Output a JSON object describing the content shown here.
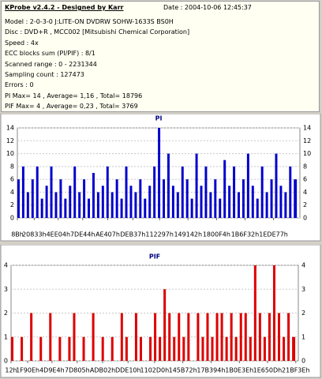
{
  "info": {
    "title": "KProbe v2.4.2 - Designed by Karr",
    "date": "Date : 2004-10-06 12:45:37",
    "lines": [
      "Model : 2-0-3-0 J:LITE-ON DVDRW SOHW-1633S BS0H",
      "Disc : DVD+R , MCC002 [Mitsubishi Chemical Corporation]",
      "Speed : 4x",
      "ECC blocks sum (PI/PIF) : 8/1",
      "Scanned range : 0 - 2231344",
      "Sampling count : 127473",
      "Errors : 0",
      "PI Max= 14 , Average= 1,16 , Total= 18796",
      "PIF Max= 4 , Average= 0,23 , Total= 3769"
    ]
  },
  "chart_data": [
    {
      "type": "bar",
      "title": "PI",
      "color": "#0000cc",
      "grid": true,
      "xlim": [
        0,
        2231344
      ],
      "ylim": [
        0,
        14
      ],
      "yticks": [
        0,
        2,
        4,
        6,
        8,
        10,
        12,
        14
      ],
      "xticks": [
        {
          "value": 139,
          "label": "8Bh"
        },
        {
          "value": 133171,
          "label": "20833h"
        },
        {
          "value": 323076,
          "label": "4EE04h"
        },
        {
          "value": 515652,
          "label": "7DE44h"
        },
        {
          "value": 713735,
          "label": "AE407h"
        },
        {
          "value": 912183,
          "label": "DEB37h"
        },
        {
          "value": 1122967,
          "label": "112297h"
        },
        {
          "value": 1347906,
          "label": "149142h"
        },
        {
          "value": 1573108,
          "label": "1800F4h"
        },
        {
          "value": 1797938,
          "label": "1B6F32h"
        },
        {
          "value": 2023031,
          "label": "1EDE77h"
        }
      ],
      "x": [
        0,
        37000,
        74000,
        111000,
        148000,
        185000,
        222000,
        259000,
        296000,
        333000,
        370000,
        407000,
        444000,
        481000,
        518000,
        555000,
        592000,
        629000,
        666000,
        703000,
        740000,
        777000,
        814000,
        851000,
        888000,
        925000,
        962000,
        999000,
        1036000,
        1073000,
        1110000,
        1147000,
        1184000,
        1221000,
        1258000,
        1295000,
        1332000,
        1369000,
        1406000,
        1443000,
        1480000,
        1517000,
        1554000,
        1591000,
        1628000,
        1665000,
        1702000,
        1739000,
        1776000,
        1813000,
        1850000,
        1887000,
        1924000,
        1961000,
        1998000,
        2035000,
        2072000,
        2109000,
        2146000,
        2183000
      ],
      "values": [
        6,
        8,
        4,
        6,
        8,
        3,
        5,
        8,
        4,
        6,
        3,
        5,
        8,
        4,
        6,
        3,
        7,
        4,
        5,
        8,
        4,
        6,
        3,
        8,
        5,
        4,
        6,
        3,
        5,
        8,
        14,
        6,
        10,
        5,
        4,
        8,
        6,
        3,
        10,
        5,
        8,
        4,
        6,
        3,
        9,
        5,
        8,
        4,
        6,
        10,
        5,
        3,
        8,
        4,
        6,
        10,
        5,
        4,
        8,
        6
      ]
    },
    {
      "type": "bar",
      "title": "PIF",
      "color": "#dd0000",
      "grid": true,
      "xlim": [
        0,
        2231344
      ],
      "ylim": [
        0,
        4
      ],
      "yticks": [
        0,
        1,
        2,
        3,
        4
      ],
      "xticks": [
        {
          "value": 18,
          "label": "12h"
        },
        {
          "value": 129294,
          "label": "1F90Eh"
        },
        {
          "value": 317924,
          "label": "4D9E4h"
        },
        {
          "value": 514053,
          "label": "7D805h"
        },
        {
          "value": 711426,
          "label": "ADB02h"
        },
        {
          "value": 908816,
          "label": "DDE10h"
        },
        {
          "value": 1114832,
          "label": "1102D0h"
        },
        {
          "value": 1334130,
          "label": "145B72h"
        },
        {
          "value": 1553300,
          "label": "17B394h"
        },
        {
          "value": 1773118,
          "label": "1B0E3Eh"
        },
        {
          "value": 1991949,
          "label": "1E650Dh"
        },
        {
          "value": 2211646,
          "label": "21BF3Eh"
        }
      ],
      "x": [
        0,
        37000,
        74000,
        111000,
        148000,
        185000,
        222000,
        259000,
        296000,
        333000,
        370000,
        407000,
        444000,
        481000,
        518000,
        555000,
        592000,
        629000,
        666000,
        703000,
        740000,
        777000,
        814000,
        851000,
        888000,
        925000,
        962000,
        999000,
        1036000,
        1073000,
        1110000,
        1147000,
        1184000,
        1221000,
        1258000,
        1295000,
        1332000,
        1369000,
        1406000,
        1443000,
        1480000,
        1517000,
        1554000,
        1591000,
        1628000,
        1665000,
        1702000,
        1739000,
        1776000,
        1813000,
        1850000,
        1887000,
        1924000,
        1961000,
        1998000,
        2035000,
        2072000,
        2109000,
        2146000,
        2183000
      ],
      "values": [
        1,
        0,
        1,
        0,
        2,
        0,
        1,
        0,
        2,
        0,
        1,
        0,
        1,
        2,
        0,
        1,
        0,
        2,
        0,
        1,
        0,
        1,
        0,
        2,
        1,
        0,
        2,
        1,
        0,
        1,
        2,
        1,
        3,
        2,
        1,
        2,
        1,
        2,
        0,
        2,
        1,
        2,
        1,
        2,
        2,
        1,
        2,
        1,
        2,
        2,
        1,
        4,
        2,
        1,
        2,
        4,
        2,
        1,
        2,
        1
      ]
    }
  ]
}
